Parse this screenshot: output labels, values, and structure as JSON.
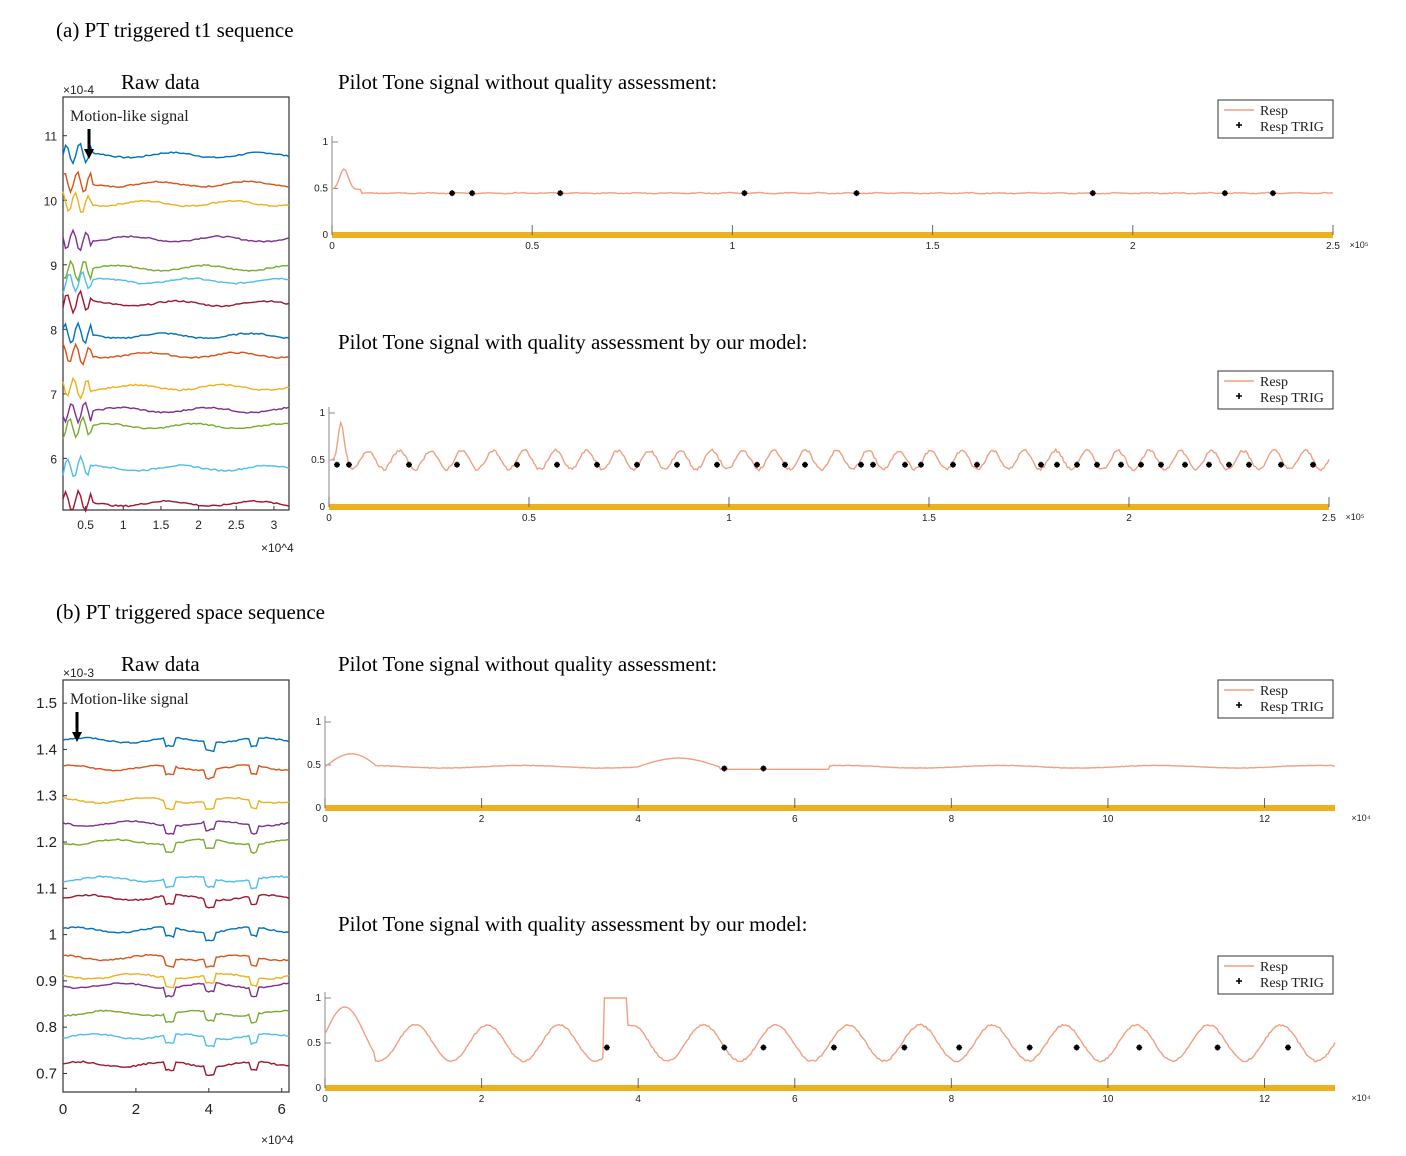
{
  "sections": [
    {
      "title": "(a) PT triggered t1 sequence",
      "raw": {
        "title": "Raw data",
        "annotation": "Motion-like signal",
        "exponent_y": "×10-4",
        "exponent_x": "×10^4",
        "y_ticks": [
          "6",
          "7",
          "8",
          "9",
          "10",
          "11"
        ],
        "x_ticks": [
          "0.5",
          "1",
          "1.5",
          "2",
          "2.5",
          "3"
        ]
      },
      "top_title": "Pilot Tone signal without quality assessment:",
      "bottom_title": "Pilot Tone signal with quality assessment by our model:"
    },
    {
      "title": "(b) PT triggered space sequence",
      "raw": {
        "title": "Raw data",
        "annotation": "Motion-like signal",
        "exponent_y": "×10-3",
        "exponent_x": "×10^4",
        "y_ticks": [
          "0.7",
          "0.8",
          "0.9",
          "1",
          "1.1",
          "1.2",
          "1.3",
          "1.4",
          "1.5"
        ],
        "x_ticks": [
          "0",
          "2",
          "4",
          "6"
        ]
      },
      "top_title": "Pilot Tone signal without quality assessment:",
      "bottom_title": "Pilot Tone signal with quality assessment by our model:"
    }
  ],
  "legend": {
    "resp": "Resp",
    "trig": "Resp TRIG"
  },
  "colors": {
    "resp": "#f0a080",
    "bar": "#edb120",
    "raw_lines": [
      "#0072bd",
      "#d95319",
      "#edb120",
      "#7e2f8e",
      "#77ac30",
      "#4dbeee",
      "#a2142f"
    ]
  },
  "chart_data": [
    {
      "type": "line",
      "panel": "a-raw",
      "title": "Raw data",
      "xlim": [
        0.2,
        3.2
      ],
      "ylim": [
        5.2,
        11.6
      ],
      "x_ticks": [
        0.5,
        1,
        1.5,
        2,
        2.5,
        3
      ],
      "y_ticks": [
        6,
        7,
        8,
        9,
        10,
        11
      ],
      "x_multiplier": "10^4",
      "y_multiplier": "10^-4",
      "series_baselines": [
        10.7,
        10.25,
        9.95,
        9.4,
        8.95,
        8.75,
        8.4,
        7.9,
        7.6,
        7.1,
        6.75,
        6.5,
        5.85,
        5.3
      ]
    },
    {
      "type": "line",
      "panel": "a-top",
      "xlim": [
        0,
        2.5
      ],
      "ylim": [
        0,
        1
      ],
      "x_ticks": [
        0,
        0.5,
        1,
        1.5,
        2,
        2.5
      ],
      "y_ticks": [
        0,
        0.5,
        1
      ],
      "x_multiplier": "10^5",
      "series": [
        {
          "name": "Resp",
          "level": 0.45
        }
      ],
      "trig_x": [
        0.3,
        0.35,
        0.57,
        1.03,
        1.31,
        1.9,
        2.23,
        2.35
      ],
      "trig_y": 0.45
    },
    {
      "type": "line",
      "panel": "a-bottom",
      "xlim": [
        0,
        2.5
      ],
      "ylim": [
        0,
        1
      ],
      "x_ticks": [
        0,
        0.5,
        1,
        1.5,
        2,
        2.5
      ],
      "y_ticks": [
        0,
        0.5,
        1
      ],
      "x_multiplier": "10^5",
      "series": [
        {
          "name": "Resp",
          "mean": 0.5,
          "amplitude": 0.1
        }
      ],
      "trig_x": [
        0.02,
        0.05,
        0.2,
        0.32,
        0.47,
        0.57,
        0.67,
        0.77,
        0.87,
        0.97,
        1.07,
        1.14,
        1.19,
        1.33,
        1.36,
        1.44,
        1.48,
        1.56,
        1.62,
        1.78,
        1.82,
        1.87,
        1.92,
        1.98,
        2.03,
        2.08,
        2.14,
        2.2,
        2.25,
        2.3,
        2.38,
        2.46
      ],
      "trig_y": 0.45
    },
    {
      "type": "line",
      "panel": "b-raw",
      "title": "Raw data",
      "xlim": [
        0,
        6.2
      ],
      "ylim": [
        0.66,
        1.55
      ],
      "x_ticks": [
        0,
        2,
        4,
        6
      ],
      "y_ticks": [
        0.7,
        0.8,
        0.9,
        1,
        1.1,
        1.2,
        1.3,
        1.4,
        1.5
      ],
      "x_multiplier": "10^4",
      "y_multiplier": "10^-3",
      "series_baselines": [
        1.42,
        1.36,
        1.29,
        1.24,
        1.2,
        1.12,
        1.08,
        1.01,
        0.95,
        0.91,
        0.89,
        0.83,
        0.78,
        0.72
      ]
    },
    {
      "type": "line",
      "panel": "b-top",
      "xlim": [
        0,
        12.9
      ],
      "ylim": [
        0,
        1
      ],
      "x_ticks": [
        0,
        2,
        4,
        6,
        8,
        10,
        12
      ],
      "y_ticks": [
        0,
        0.5,
        1
      ],
      "x_multiplier": "10^4",
      "series": [
        {
          "name": "Resp",
          "level": 0.48
        }
      ],
      "trig_x": [
        5.1,
        5.6
      ],
      "trig_y": 0.46
    },
    {
      "type": "line",
      "panel": "b-bottom",
      "xlim": [
        0,
        12.9
      ],
      "ylim": [
        0,
        1
      ],
      "x_ticks": [
        0,
        2,
        4,
        6,
        8,
        10,
        12
      ],
      "y_ticks": [
        0,
        0.5,
        1
      ],
      "x_multiplier": "10^4",
      "series": [
        {
          "name": "Resp",
          "mean": 0.5,
          "amplitude": 0.2
        }
      ],
      "trig_x": [
        3.6,
        5.1,
        5.6,
        6.5,
        7.4,
        8.1,
        9.0,
        9.6,
        10.4,
        11.4,
        12.3
      ],
      "trig_y": 0.45
    }
  ]
}
